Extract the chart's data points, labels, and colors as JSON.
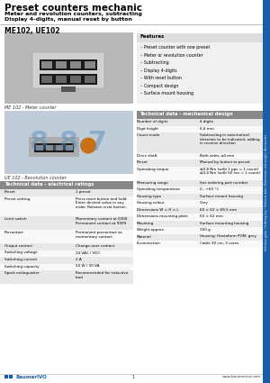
{
  "title": "Preset counters mechanic",
  "subtitle1": "Meter and revolution counters, subtracting",
  "subtitle2": "Display 4-digits, manual reset by button",
  "model": "ME102, UE102",
  "bg_color": "#ffffff",
  "blue_color": "#1a5ea8",
  "features_title": "Features",
  "features": [
    "Preset counter with one preset",
    "Meter or revolution counter",
    "Subtracting",
    "Display 4-digits",
    "With reset button",
    "Compact design",
    "Surface mount housing"
  ],
  "tech_title": "Technical data - mechanical design",
  "tech_rows": [
    [
      "Number of digits",
      "4 digits"
    ],
    [
      "Digit height",
      "6.6 mm"
    ],
    [
      "Count mode",
      "Subtracting in automatical\ndirection to be indicated, adding\nin reverse direction"
    ],
    [
      "Drive shaft",
      "Both sides, ø4 mm"
    ],
    [
      "Preset",
      "Manual by button to preset"
    ],
    [
      "Operating torque",
      "≤0.8 Nm (with 1 pps = 1 count)\n≤0.4 Nm (with 50 rev = 1 count)"
    ],
    [
      "Measuring range",
      "See ordering part number"
    ],
    [
      "Operating temperature",
      "0...+60 °C"
    ],
    [
      "Housing type",
      "Surface mount housing"
    ],
    [
      "Housing colour",
      "Grey"
    ],
    [
      "Dimensions W × H × L",
      "60 × 62 × 69.5 mm"
    ],
    [
      "Dimensions mounting plate",
      "60 × 62 mm"
    ],
    [
      "Mounting",
      "Surface mounting housing"
    ],
    [
      "Weight approx.",
      "350 g"
    ],
    [
      "Material",
      "Housing: Hostaform POM, grey"
    ],
    [
      "E-connection",
      "Cable 30 cm, 3 cores"
    ]
  ],
  "elec_title": "Technical data - electrical ratings",
  "elec_rows": [
    [
      "Preset",
      "1 preset"
    ],
    [
      "Preset setting",
      "Press reset button and hold.\nEnter desired value in any\norder. Release reset button."
    ],
    [
      "Limit switch",
      "Momentary contact at 0000\nPermanent contact at 9999"
    ],
    [
      "Precontact",
      "Permanent precontact as\nmomentary contact"
    ],
    [
      "Output contact",
      "Change-over contact"
    ],
    [
      "Switching voltage",
      "24 VAC / VDC"
    ],
    [
      "Switching current",
      "2 A"
    ],
    [
      "Switching capacity",
      "50 W / 30 VA"
    ],
    [
      "Spark extinguisher",
      "Recommended for inductive\nload"
    ]
  ],
  "img1_caption": "ME 102 - Meter counter",
  "img2_caption": "UE 102 - Revolution counter",
  "footer_page": "1",
  "footer_url": "www.baumerivo.com",
  "footer_brand": "BaumerIVO",
  "sidebar_text": "Selection guide / Ordering key / Technical data / Dimensions and weight / Accessories"
}
